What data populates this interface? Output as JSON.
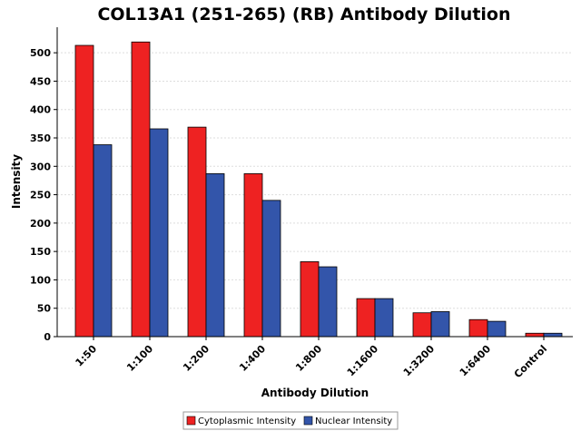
{
  "chart_data": {
    "type": "bar",
    "title": "COL13A1 (251-265) (RB) Antibody Dilution",
    "xlabel": "Antibody Dilution",
    "ylabel": "Intensity",
    "categories": [
      "1:50",
      "1:100",
      "1:200",
      "1:400",
      "1:800",
      "1:1600",
      "1:3200",
      "1:6400",
      "Control"
    ],
    "series": [
      {
        "name": "Cytoplasmic Intensity",
        "color": "#ee2222",
        "values": [
          513,
          519,
          369,
          287,
          132,
          67,
          42,
          30,
          6
        ]
      },
      {
        "name": "Nuclear Intensity",
        "color": "#3355aa",
        "values": [
          338,
          366,
          287,
          240,
          123,
          67,
          44,
          27,
          6
        ]
      }
    ],
    "ylim": [
      0,
      545
    ],
    "yticks": [
      0,
      50,
      100,
      150,
      200,
      250,
      300,
      350,
      400,
      450,
      500
    ],
    "grid": true,
    "legend_position": "bottom-center"
  }
}
